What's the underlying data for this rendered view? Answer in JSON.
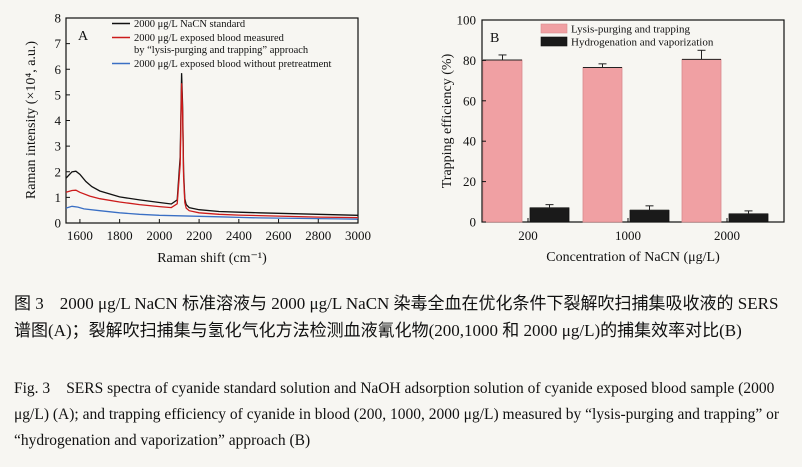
{
  "chart_data": [
    {
      "panel": "A",
      "type": "line",
      "xlabel": "Raman  shift (cm⁻¹)",
      "ylabel": "Raman  intensity (×10⁴,  a.u.)",
      "xlim": [
        1530,
        3000
      ],
      "ylim": [
        0,
        8
      ],
      "xticks": [
        1600,
        1800,
        2000,
        2200,
        2400,
        2600,
        2800,
        3000
      ],
      "yticks": [
        0,
        1,
        2,
        3,
        4,
        5,
        6,
        7,
        8
      ],
      "legend_position": "top",
      "series": [
        {
          "name": "2000 μg/L NaCN standard",
          "color": "#111111",
          "x": [
            1530,
            1560,
            1580,
            1600,
            1630,
            1660,
            1700,
            1800,
            1900,
            2000,
            2060,
            2090,
            2105,
            2112,
            2117,
            2122,
            2128,
            2135,
            2150,
            2200,
            2300,
            2400,
            2500,
            2600,
            2700,
            2800,
            2900,
            3000
          ],
          "y": [
            1.75,
            2.0,
            2.02,
            1.9,
            1.62,
            1.42,
            1.25,
            1.02,
            0.9,
            0.8,
            0.74,
            0.9,
            2.6,
            5.85,
            4.6,
            2.0,
            0.95,
            0.72,
            0.6,
            0.52,
            0.45,
            0.42,
            0.4,
            0.38,
            0.36,
            0.34,
            0.32,
            0.3
          ]
        },
        {
          "name": "2000 μg/L exposed blood measured by “lysis-purging and trapping” approach",
          "color": "#cc1b1b",
          "x": [
            1530,
            1560,
            1580,
            1600,
            1650,
            1700,
            1800,
            1900,
            2000,
            2060,
            2090,
            2105,
            2112,
            2117,
            2122,
            2128,
            2135,
            2150,
            2200,
            2300,
            2400,
            2500,
            2600,
            2700,
            2800,
            2900,
            3000
          ],
          "y": [
            1.2,
            1.27,
            1.28,
            1.2,
            1.05,
            0.95,
            0.82,
            0.72,
            0.64,
            0.6,
            0.75,
            2.3,
            5.45,
            4.3,
            1.8,
            0.8,
            0.58,
            0.48,
            0.4,
            0.34,
            0.31,
            0.29,
            0.27,
            0.25,
            0.23,
            0.22,
            0.21
          ]
        },
        {
          "name": "2000 μg/L exposed blood without pretreatment",
          "color": "#3a6fc4",
          "x": [
            1530,
            1560,
            1590,
            1620,
            1700,
            1800,
            1900,
            2000,
            2100,
            2200,
            2300,
            2400,
            2500,
            2600,
            2700,
            2800,
            2900,
            3000
          ],
          "y": [
            0.58,
            0.65,
            0.62,
            0.55,
            0.48,
            0.4,
            0.34,
            0.3,
            0.28,
            0.26,
            0.24,
            0.22,
            0.2,
            0.19,
            0.18,
            0.17,
            0.16,
            0.15
          ]
        }
      ]
    },
    {
      "panel": "B",
      "type": "bar",
      "xlabel": "Concentration  of  NaCN (μg/L)",
      "ylabel": "Trapping  efficiency (%)",
      "categories": [
        "200",
        "1000",
        "2000"
      ],
      "ylim": [
        0,
        100
      ],
      "yticks": [
        0,
        20,
        40,
        60,
        80,
        100
      ],
      "legend_position": "top",
      "series": [
        {
          "name": "Lysis-purging and trapping",
          "color": "#f0a0a3",
          "values": [
            80.2,
            76.5,
            80.5
          ],
          "errors": [
            2.5,
            1.8,
            4.5
          ]
        },
        {
          "name": "Hydrogenation and vaporization",
          "color": "#1a1a1a",
          "values": [
            7.0,
            5.8,
            4.0
          ],
          "errors": [
            1.6,
            2.2,
            1.5
          ]
        }
      ]
    }
  ],
  "captions": {
    "cn_label": "图 3",
    "cn_text": "2000 μg/L NaCN 标准溶液与 2000 μg/L NaCN 染毒全血在优化条件下裂解吹扫捕集吸收液的 SERS 谱图(A)；裂解吹扫捕集与氢化气化方法检测血液氰化物(200,1000 和 2000 μg/L)的捕集效率对比(B)",
    "en_label": "Fig. 3",
    "en_text": "SERS spectra of cyanide standard solution and NaOH adsorption solution of cyanide exposed blood sample (2000 μg/L) (A); and trapping efficiency of cyanide in blood (200, 1000, 2000 μg/L) measured by “lysis-purging and trapping” or “hydrogenation and vaporization” approach (B)"
  }
}
